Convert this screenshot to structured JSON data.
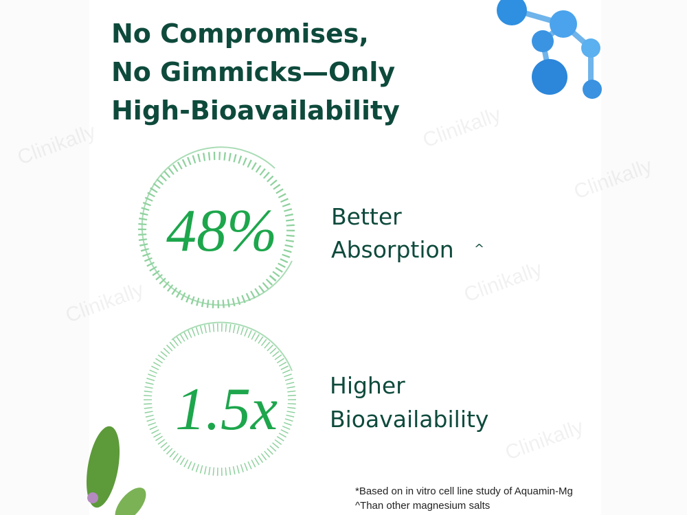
{
  "header": {
    "title_lines": [
      "No Compromises,",
      "No Gimmicks—Only",
      "High-Bioavailability"
    ]
  },
  "stats": [
    {
      "figure": "48%",
      "label_lines": [
        "Better",
        "Absorption"
      ],
      "mark": "^"
    },
    {
      "figure": "1.5x",
      "label_lines": [
        "Higher",
        "Bioavailability"
      ]
    }
  ],
  "footnotes": [
    "*Based on in vitro cell line study of Aquamin-Mg",
    "^Than other magnesium salts"
  ],
  "watermark": "Clinikally"
}
